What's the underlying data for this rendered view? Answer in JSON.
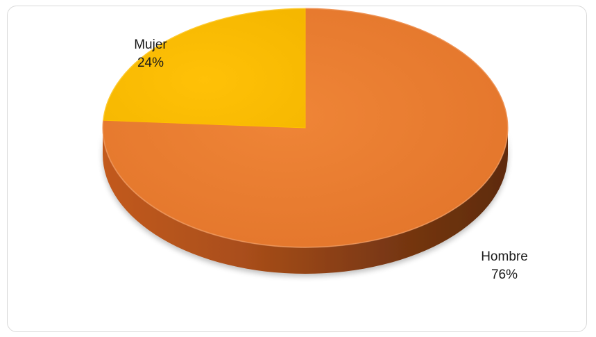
{
  "chart_data": {
    "type": "pie",
    "style": "3d",
    "categories": [
      "Hombre",
      "Mujer"
    ],
    "values": [
      76,
      24
    ],
    "labels": [
      {
        "name": "Hombre",
        "value": "76%"
      },
      {
        "name": "Mujer",
        "value": "24%"
      }
    ],
    "colors": {
      "Hombre": "#ED7D31",
      "Mujer": "#FFC000"
    },
    "legend": "none",
    "title": ""
  }
}
